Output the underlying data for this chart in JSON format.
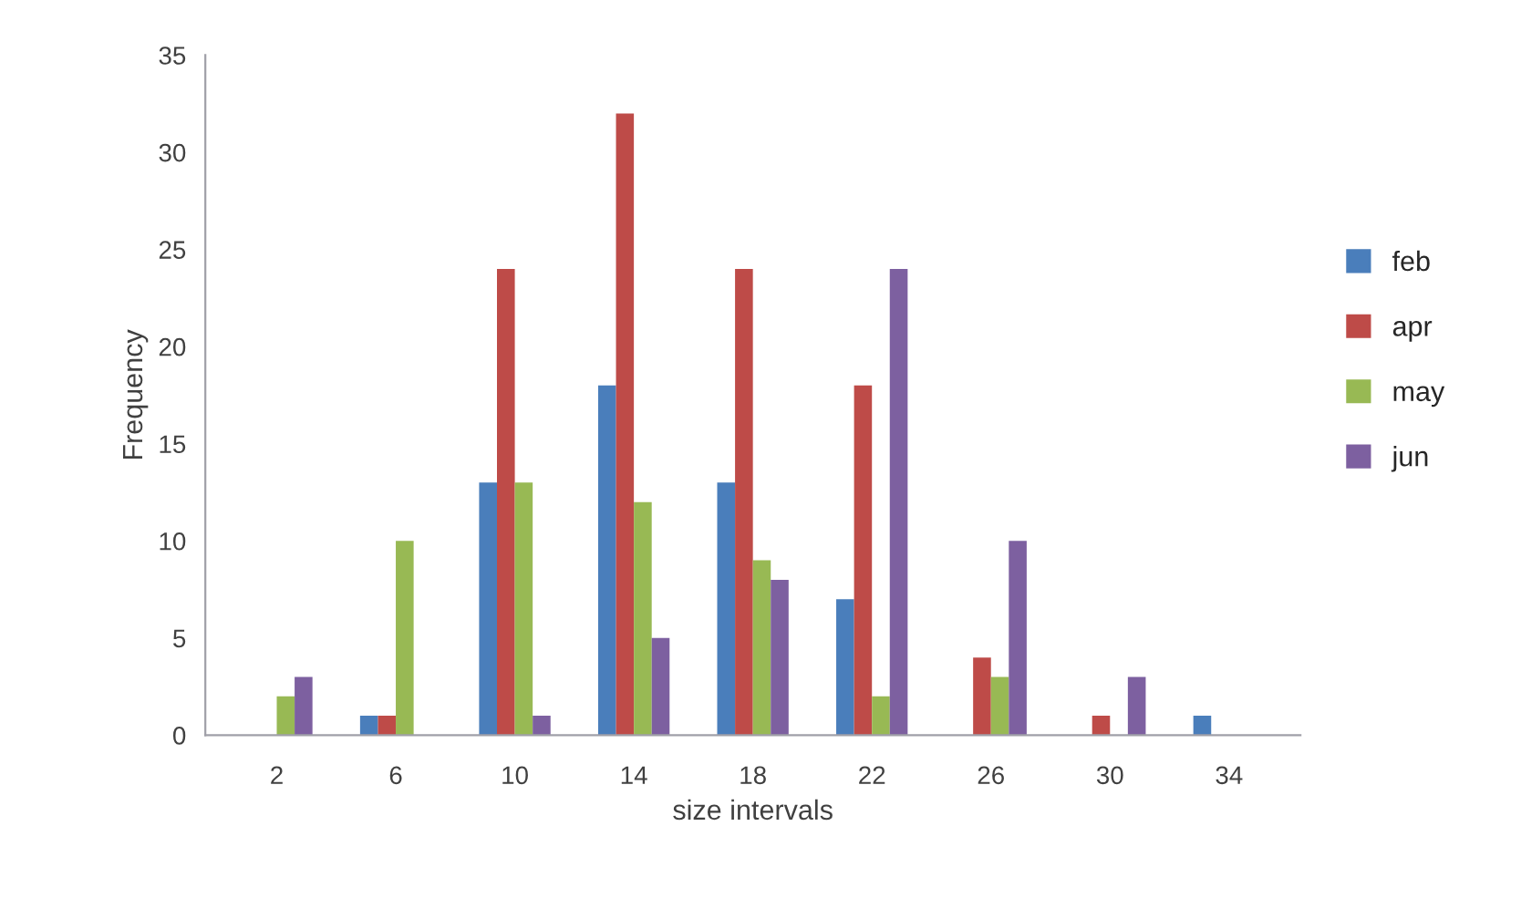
{
  "chart_data": {
    "type": "bar",
    "xlabel": "size intervals",
    "ylabel": "Frequency",
    "categories": [
      "2",
      "6",
      "10",
      "14",
      "18",
      "22",
      "26",
      "30",
      "34"
    ],
    "series": [
      {
        "name": "feb",
        "color": "#4a7ebb",
        "values": [
          0,
          1,
          13,
          18,
          13,
          7,
          0,
          0,
          1
        ]
      },
      {
        "name": "apr",
        "color": "#be4b48",
        "values": [
          0,
          1,
          24,
          32,
          24,
          18,
          4,
          1,
          0
        ]
      },
      {
        "name": "may",
        "color": "#98b954",
        "values": [
          2,
          10,
          13,
          12,
          9,
          2,
          3,
          0,
          0
        ]
      },
      {
        "name": "jun",
        "color": "#7d60a0",
        "values": [
          3,
          0,
          1,
          5,
          8,
          24,
          10,
          3,
          0
        ]
      }
    ],
    "ylim": [
      0,
      35
    ],
    "yticks": [
      0,
      5,
      10,
      15,
      20,
      25,
      30,
      35
    ],
    "grid": false,
    "legend": "right"
  }
}
